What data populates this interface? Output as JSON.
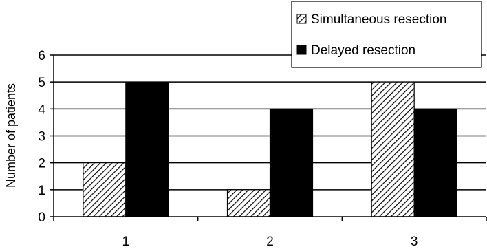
{
  "chart_data": {
    "type": "bar",
    "categories": [
      "1",
      "2",
      "3"
    ],
    "series": [
      {
        "name": "Simultaneous resection",
        "values": [
          2,
          1,
          5
        ],
        "fill": "hatched"
      },
      {
        "name": "Delayed resection",
        "values": [
          5,
          4,
          4
        ],
        "fill": "#000000"
      }
    ],
    "xlabel": "",
    "ylabel": "Number of patients",
    "ylim": [
      0,
      6
    ],
    "yticks": [
      "0",
      "1",
      "2",
      "3",
      "4",
      "5",
      "6"
    ],
    "grid": true,
    "legend_position": "top-right"
  }
}
